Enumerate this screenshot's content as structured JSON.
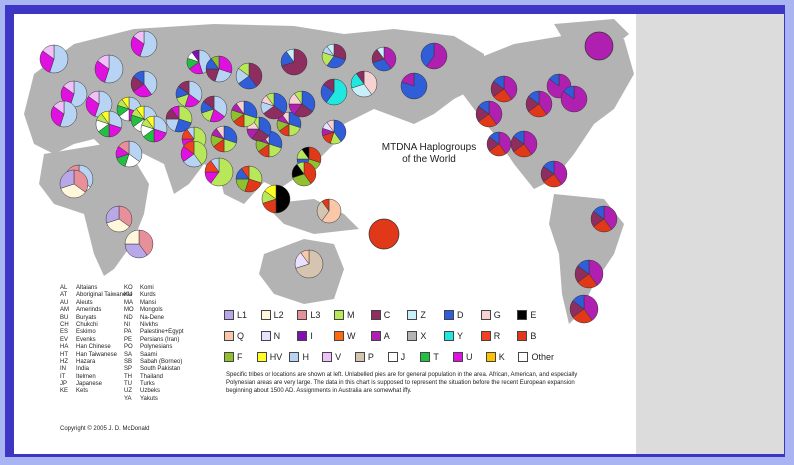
{
  "map": {
    "title_line1": "MTDNA Haplogroups",
    "title_line2": "of the World",
    "copyright": "Copyright © 2005 J. D. McDonald",
    "note": "Specific tribes or locations are shown at left. Unlabelled pies are for general population in the area. African, American, and especially Polynesian areas are very large. The data in this chart is supposed to represent the situation before the recent European expansion beginning about 1500 AD. Assignments in Australia are somewhat iffy."
  },
  "abbreviations_left": [
    [
      "AL",
      "Altaians"
    ],
    [
      "AT",
      "Aboriginal Taiwanese"
    ],
    [
      "AU",
      "Aleuts"
    ],
    [
      "AM",
      "Amerinds"
    ],
    [
      "BU",
      "Buryats"
    ],
    [
      "CH",
      "Chukchi"
    ],
    [
      "ES",
      "Eskimo"
    ],
    [
      "EV",
      "Evenks"
    ],
    [
      "HA",
      "Han Chinese"
    ],
    [
      "HT",
      "Han Taiwanese"
    ],
    [
      "HZ",
      "Hazara"
    ],
    [
      "IN",
      "India"
    ],
    [
      "IT",
      "Itelmen"
    ],
    [
      "JP",
      "Japanese"
    ],
    [
      "KE",
      "Kets"
    ]
  ],
  "abbreviations_right": [
    [
      "KO",
      "Komi"
    ],
    [
      "KU",
      "Kurds"
    ],
    [
      "MA",
      "Mansi"
    ],
    [
      "MO",
      "Mongols"
    ],
    [
      "ND",
      "Na-Dene"
    ],
    [
      "NI",
      "Nivkhs"
    ],
    [
      "PA",
      "Palestine+Egypt"
    ],
    [
      "PE",
      "Persians (Iran)"
    ],
    [
      "PO",
      "Polynesians"
    ],
    [
      "SA",
      "Saami"
    ],
    [
      "SB",
      "Sabah (Borneo)"
    ],
    [
      "SP",
      "South Pakistan"
    ],
    [
      "TH",
      "Thailand"
    ],
    [
      "TU",
      "Turks"
    ],
    [
      "UZ",
      "Uzbeks"
    ],
    [
      "YA",
      "Yakuts"
    ]
  ],
  "legend": [
    [
      [
        "L1",
        "#b8a8e8"
      ],
      [
        "L2",
        "#fff6dc"
      ],
      [
        "L3",
        "#e8909a"
      ],
      [
        "M",
        "#b8e85a"
      ],
      [
        "C",
        "#8e2e60"
      ],
      [
        "Z",
        "#c8f0f8"
      ],
      [
        "D",
        "#2f5ed8"
      ],
      [
        "G",
        "#f6d2d2"
      ],
      [
        "E",
        "#000000"
      ]
    ],
    [
      [
        "Q",
        "#f8c8a8"
      ],
      [
        "N",
        "#eae0ff"
      ],
      [
        "I",
        "#8010b0"
      ],
      [
        "W",
        "#ff6a10"
      ],
      [
        "A",
        "#b020b0"
      ],
      [
        "X",
        "#b4b4b4"
      ],
      [
        "Y",
        "#20e8e0"
      ],
      [
        "R",
        "#f04020"
      ],
      [
        "B",
        "#e03818"
      ]
    ],
    [
      [
        "F",
        "#90c030"
      ],
      [
        "HV",
        "#ffff20"
      ],
      [
        "H",
        "#b8d4f4"
      ],
      [
        "V",
        "#f0c0f8"
      ],
      [
        "P",
        "#d4c4b0"
      ],
      [
        "J",
        "#ffffff"
      ],
      [
        "T",
        "#20c040"
      ],
      [
        "U",
        "#e010e0"
      ],
      [
        "K",
        "#ffc000"
      ],
      [
        "Other",
        "#ffffff"
      ]
    ]
  ],
  "pies": [
    [
      "SA",
      [
        [
          "H",
          55
        ],
        [
          "U",
          30
        ],
        [
          "V",
          15
        ]
      ]
    ],
    [
      "KO",
      [
        [
          "H",
          45
        ],
        [
          "U",
          20
        ],
        [
          "T",
          15
        ],
        [
          "J",
          10
        ],
        [
          "I",
          10
        ]
      ]
    ],
    [
      "KE",
      [
        [
          "U",
          30
        ],
        [
          "H",
          25
        ],
        [
          "C",
          20
        ],
        [
          "D",
          15
        ],
        [
          "F",
          10
        ]
      ]
    ],
    [
      "EV",
      [
        [
          "C",
          70
        ],
        [
          "D",
          20
        ],
        [
          "Z",
          10
        ]
      ]
    ],
    [
      "YA",
      [
        [
          "C",
          30
        ],
        [
          "D",
          30
        ],
        [
          "M",
          20
        ],
        [
          "H",
          10
        ],
        [
          "Z",
          10
        ]
      ]
    ],
    [
      "CH",
      [
        [
          "A",
          40
        ],
        [
          "D",
          30
        ],
        [
          "C",
          20
        ],
        [
          "Z",
          10
        ]
      ]
    ],
    [
      "ES",
      [
        [
          "A",
          60
        ],
        [
          "D",
          40
        ]
      ]
    ],
    [
      "ES2",
      [
        [
          "A",
          100
        ]
      ]
    ],
    [
      "MA",
      [
        [
          "H",
          40
        ],
        [
          "U",
          25
        ],
        [
          "C",
          20
        ],
        [
          "D",
          15
        ]
      ]
    ],
    [
      "AL",
      [
        [
          "C",
          40
        ],
        [
          "D",
          25
        ],
        [
          "H",
          20
        ],
        [
          "M",
          15
        ]
      ]
    ],
    [
      "BU",
      [
        [
          "D",
          35
        ],
        [
          "C",
          30
        ],
        [
          "H",
          15
        ],
        [
          "G",
          10
        ],
        [
          "M",
          10
        ]
      ]
    ],
    [
      "MO",
      [
        [
          "D",
          35
        ],
        [
          "C",
          25
        ],
        [
          "A",
          15
        ],
        [
          "G",
          15
        ],
        [
          "M",
          10
        ]
      ]
    ],
    [
      "NI",
      [
        [
          "Y",
          60
        ],
        [
          "D",
          25
        ],
        [
          "C",
          15
        ]
      ]
    ],
    [
      "IT",
      [
        [
          "G",
          40
        ],
        [
          "Z",
          30
        ],
        [
          "Y",
          20
        ],
        [
          "C",
          10
        ]
      ]
    ],
    [
      "AU",
      [
        [
          "D",
          80
        ],
        [
          "A",
          20
        ]
      ]
    ],
    [
      "UZ",
      [
        [
          "H",
          35
        ],
        [
          "U",
          20
        ],
        [
          "M",
          15
        ],
        [
          "D",
          15
        ],
        [
          "C",
          15
        ]
      ]
    ],
    [
      "HZ",
      [
        [
          "M",
          30
        ],
        [
          "D",
          25
        ],
        [
          "H",
          20
        ],
        [
          "C",
          15
        ],
        [
          "U",
          10
        ]
      ]
    ],
    [
      "HA",
      [
        [
          "D",
          30
        ],
        [
          "M",
          20
        ],
        [
          "B",
          15
        ],
        [
          "F",
          15
        ],
        [
          "A",
          10
        ],
        [
          "G",
          10
        ]
      ]
    ],
    [
      "JP",
      [
        [
          "D",
          40
        ],
        [
          "M",
          15
        ],
        [
          "B",
          15
        ],
        [
          "A",
          10
        ],
        [
          "N",
          10
        ],
        [
          "G",
          10
        ]
      ]
    ],
    [
      "HT",
      [
        [
          "B",
          30
        ],
        [
          "F",
          25
        ],
        [
          "D",
          20
        ],
        [
          "M",
          15
        ],
        [
          "E",
          10
        ]
      ]
    ],
    [
      "AT",
      [
        [
          "B",
          40
        ],
        [
          "F",
          30
        ],
        [
          "E",
          20
        ],
        [
          "M",
          10
        ]
      ]
    ],
    [
      "TH",
      [
        [
          "M",
          30
        ],
        [
          "B",
          25
        ],
        [
          "F",
          20
        ],
        [
          "D",
          15
        ],
        [
          "R",
          10
        ]
      ]
    ],
    [
      "SB",
      [
        [
          "E",
          50
        ],
        [
          "B",
          20
        ],
        [
          "M",
          15
        ],
        [
          "HV",
          15
        ]
      ]
    ],
    [
      "IN",
      [
        [
          "M",
          60
        ],
        [
          "U",
          15
        ],
        [
          "R",
          15
        ],
        [
          "H",
          10
        ]
      ]
    ],
    [
      "PO",
      [
        [
          "B",
          100
        ]
      ]
    ],
    [
      "PE",
      [
        [
          "H",
          30
        ],
        [
          "U",
          20
        ],
        [
          "J",
          15
        ],
        [
          "T",
          15
        ],
        [
          "M",
          10
        ],
        [
          "HV",
          10
        ]
      ]
    ],
    [
      "PA",
      [
        [
          "H",
          35
        ],
        [
          "J",
          20
        ],
        [
          "T",
          15
        ],
        [
          "U",
          15
        ],
        [
          "L3",
          15
        ]
      ]
    ],
    [
      "KU",
      [
        [
          "H",
          30
        ],
        [
          "U",
          20
        ],
        [
          "T",
          15
        ],
        [
          "J",
          15
        ],
        [
          "M",
          10
        ],
        [
          "HV",
          10
        ]
      ]
    ],
    [
      "SP",
      [
        [
          "M",
          40
        ],
        [
          "H",
          25
        ],
        [
          "U",
          20
        ],
        [
          "R",
          15
        ]
      ]
    ],
    [
      "AM",
      [
        [
          "A",
          40
        ],
        [
          "B",
          25
        ],
        [
          "C",
          20
        ],
        [
          "D",
          15
        ]
      ]
    ],
    [
      "ND",
      [
        [
          "A",
          85
        ],
        [
          "D",
          15
        ]
      ]
    ],
    [
      "AF1",
      [
        [
          "L3",
          35
        ],
        [
          "L2",
          35
        ],
        [
          "L1",
          30
        ]
      ]
    ],
    [
      "AF2",
      [
        [
          "L3",
          40
        ],
        [
          "L1",
          35
        ],
        [
          "L2",
          25
        ]
      ]
    ],
    [
      "AUS",
      [
        [
          "P",
          70
        ],
        [
          "N",
          20
        ],
        [
          "Q",
          10
        ]
      ]
    ],
    [
      "NG",
      [
        [
          "Q",
          60
        ],
        [
          "P",
          30
        ],
        [
          "B",
          10
        ]
      ]
    ]
  ]
}
